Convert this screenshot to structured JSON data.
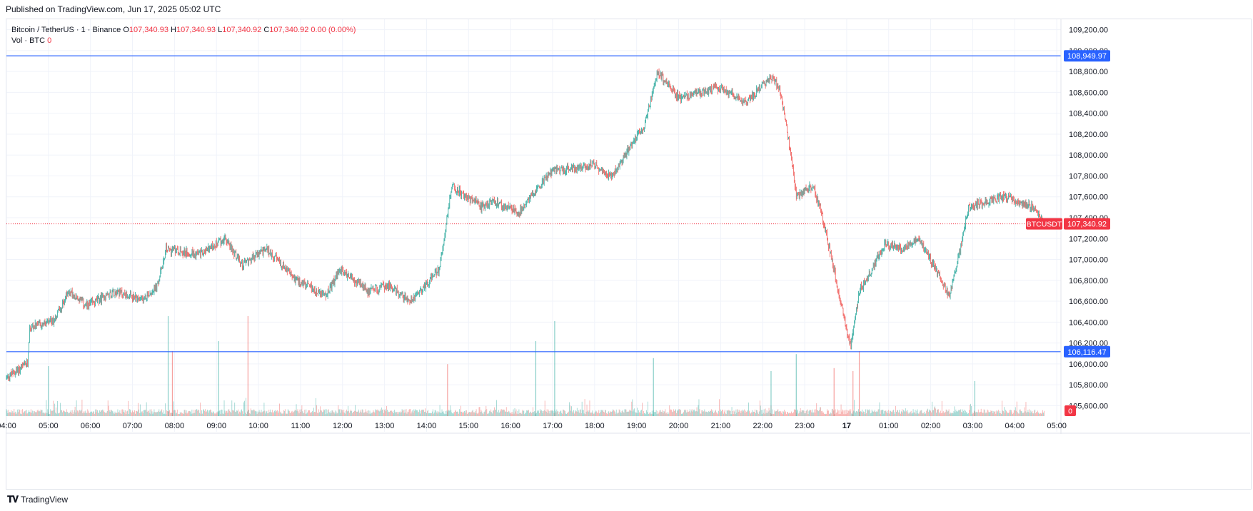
{
  "header": {
    "published": "Published on TradingView.com, Jun 17, 2025 05:02 UTC"
  },
  "legend": {
    "symbol": "Bitcoin / TetherUS · 1 · Binance",
    "o_label": "O",
    "o_value": "107,340.93",
    "h_label": "H",
    "h_value": "107,340.93",
    "l_label": "L",
    "l_value": "107,340.92",
    "c_label": "C",
    "c_value": "107,340.92",
    "change": "0.00 (0.00%)",
    "vol_label": "Vol · BTC",
    "vol_value": "0"
  },
  "footer": {
    "brand": "TradingView",
    "logo": "tradingview-logo"
  },
  "colors": {
    "up": "#26a69a",
    "down": "#ef5350",
    "level": "#2962ff",
    "price": "#f23645"
  },
  "chart_data": {
    "type": "candlestick",
    "symbol": "BTCUSDT",
    "ylim": [
      105500,
      109300
    ],
    "y_ticks": [
      105600,
      105800,
      106000,
      106200,
      106400,
      106600,
      106800,
      107000,
      107200,
      107400,
      107600,
      107800,
      108000,
      108200,
      108400,
      108600,
      108800,
      109000,
      109200
    ],
    "y_tick_labels": [
      "105,600.00",
      "105,800.00",
      "106,000.00",
      "106,200.00",
      "106,400.00",
      "106,600.00",
      "106,800.00",
      "107,000.00",
      "107,200.00",
      "107,400.00",
      "107,600.00",
      "107,800.00",
      "108,000.00",
      "108,200.00",
      "108,400.00",
      "108,600.00",
      "108,800.00",
      "109,000.00",
      "109,200.00"
    ],
    "x_ticks": [
      "04:00",
      "05:00",
      "06:00",
      "07:00",
      "08:00",
      "09:00",
      "10:00",
      "11:00",
      "12:00",
      "13:00",
      "14:00",
      "15:00",
      "16:00",
      "17:00",
      "18:00",
      "19:00",
      "20:00",
      "21:00",
      "22:00",
      "23:00",
      "17",
      "01:00",
      "02:00",
      "03:00",
      "04:00",
      "05:00"
    ],
    "x_tick_hours": [
      0,
      1,
      2,
      3,
      4,
      5,
      6,
      7,
      8,
      9,
      10,
      11,
      12,
      13,
      14,
      15,
      16,
      17,
      18,
      19,
      20,
      21,
      22,
      23,
      24,
      25
    ],
    "x_range_hours": [
      0,
      25.1
    ],
    "price_path": [
      [
        0,
        105870
      ],
      [
        0.5,
        106000
      ],
      [
        0.55,
        106350
      ],
      [
        1.1,
        106400
      ],
      [
        1.5,
        106700
      ],
      [
        1.9,
        106550
      ],
      [
        2.6,
        106700
      ],
      [
        3.2,
        106600
      ],
      [
        3.6,
        106750
      ],
      [
        3.8,
        107100
      ],
      [
        4.6,
        107050
      ],
      [
        5.2,
        107200
      ],
      [
        5.6,
        106950
      ],
      [
        6.2,
        107100
      ],
      [
        6.9,
        106800
      ],
      [
        7.6,
        106650
      ],
      [
        7.95,
        106900
      ],
      [
        8.6,
        106700
      ],
      [
        9.1,
        106750
      ],
      [
        9.6,
        106600
      ],
      [
        10.3,
        106900
      ],
      [
        10.6,
        107700
      ],
      [
        11.3,
        107500
      ],
      [
        11.6,
        107550
      ],
      [
        12.2,
        107450
      ],
      [
        12.5,
        107620
      ],
      [
        13.0,
        107850
      ],
      [
        14.0,
        107900
      ],
      [
        14.4,
        107800
      ],
      [
        14.8,
        108050
      ],
      [
        15.2,
        108300
      ],
      [
        15.5,
        108800
      ],
      [
        16.0,
        108550
      ],
      [
        17.0,
        108650
      ],
      [
        17.6,
        108500
      ],
      [
        18.2,
        108750
      ],
      [
        18.4,
        108650
      ],
      [
        18.6,
        108200
      ],
      [
        18.8,
        107600
      ],
      [
        19.2,
        107700
      ],
      [
        19.4,
        107450
      ],
      [
        19.8,
        106700
      ],
      [
        20.1,
        106150
      ],
      [
        20.3,
        106700
      ],
      [
        20.6,
        106900
      ],
      [
        20.9,
        107150
      ],
      [
        21.3,
        107100
      ],
      [
        21.7,
        107200
      ],
      [
        22.2,
        106850
      ],
      [
        22.45,
        106650
      ],
      [
        22.65,
        107000
      ],
      [
        22.9,
        107500
      ],
      [
        23.3,
        107550
      ],
      [
        23.75,
        107600
      ],
      [
        24.4,
        107500
      ],
      [
        24.6,
        107400
      ],
      [
        24.7,
        107340.92
      ]
    ],
    "horizontal_levels": [
      {
        "label": "108,949.97",
        "value": 108949.97
      },
      {
        "label": "106,116.47",
        "value": 106116.47
      }
    ],
    "last_price": {
      "symbol_label": "BTCUSDT",
      "label": "107,340.92",
      "value": 107340.92
    },
    "volume_last_label": "0",
    "volume_spikes": [
      {
        "hour": 3.85,
        "value": 1.0
      },
      {
        "hour": 5.05,
        "value": 0.75
      },
      {
        "hour": 5.75,
        "value": 1.0
      },
      {
        "hour": 3.95,
        "value": 0.65
      },
      {
        "hour": 10.5,
        "value": 0.52
      },
      {
        "hour": 12.6,
        "value": 0.75
      },
      {
        "hour": 13.05,
        "value": 0.95
      },
      {
        "hour": 15.4,
        "value": 0.58
      },
      {
        "hour": 18.2,
        "value": 0.45
      },
      {
        "hour": 18.8,
        "value": 0.62
      },
      {
        "hour": 20.3,
        "value": 0.65
      },
      {
        "hour": 20.15,
        "value": 0.45
      },
      {
        "hour": 23.05,
        "value": 0.35
      },
      {
        "hour": 1.0,
        "value": 0.5
      },
      {
        "hour": 19.7,
        "value": 0.48
      }
    ]
  }
}
